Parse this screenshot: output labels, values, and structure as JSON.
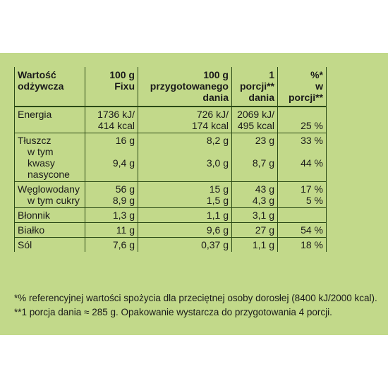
{
  "table": {
    "headers": [
      [
        "Wartość",
        "odżywcza"
      ],
      [
        "100 g",
        "Fixu"
      ],
      [
        "100 g",
        "przygotowanego",
        "dania"
      ],
      [
        "1",
        "porcji**",
        "dania"
      ],
      [
        "%*",
        "w",
        "porcji**"
      ]
    ],
    "rows": [
      {
        "label": [
          "Energia"
        ],
        "c1": [
          "1736 kJ/",
          "414 kcal"
        ],
        "c2": [
          "726 kJ/",
          "174 kcal"
        ],
        "c3": [
          "2069 kJ/",
          "495 kcal"
        ],
        "c4": [
          "",
          "25 %"
        ]
      },
      {
        "label": [
          "Tłuszcz",
          "w tym kwasy",
          "nasycone"
        ],
        "c1": [
          "16 g",
          "",
          "9,4 g"
        ],
        "c2": [
          "8,2 g",
          "",
          "3,0 g"
        ],
        "c3": [
          "23 g",
          "",
          "8,7 g"
        ],
        "c4": [
          "33 %",
          "",
          "44 %"
        ]
      },
      {
        "label": [
          "Węglowodany",
          "w tym cukry"
        ],
        "c1": [
          "56 g",
          "8,9 g"
        ],
        "c2": [
          "15 g",
          "1,5 g"
        ],
        "c3": [
          "43 g",
          "4,3 g"
        ],
        "c4": [
          "17 %",
          "5 %"
        ]
      },
      {
        "label": [
          "Błonnik"
        ],
        "c1": [
          "1,3 g"
        ],
        "c2": [
          "1,1 g"
        ],
        "c3": [
          "3,1 g"
        ],
        "c4": [
          ""
        ]
      },
      {
        "label": [
          "Białko"
        ],
        "c1": [
          "11 g"
        ],
        "c2": [
          "9,6 g"
        ],
        "c3": [
          "27 g"
        ],
        "c4": [
          "54 %"
        ]
      },
      {
        "label": [
          "Sól"
        ],
        "c1": [
          "7,6 g"
        ],
        "c2": [
          "0,37 g"
        ],
        "c3": [
          "1,1 g"
        ],
        "c4": [
          "18 %"
        ]
      }
    ]
  },
  "footnotes": [
    "*% referencyjnej wartości spożycia dla przeciętnej osoby dorosłej (8400 kJ/2000 kcal).",
    "**1 porcja dania ≈ 285 g. Opakowanie wystarcza do przygotowania 4 porcji."
  ],
  "colors": {
    "panel": "#c2d98a",
    "border": "#2b4a16",
    "text": "#1a1a1a"
  }
}
